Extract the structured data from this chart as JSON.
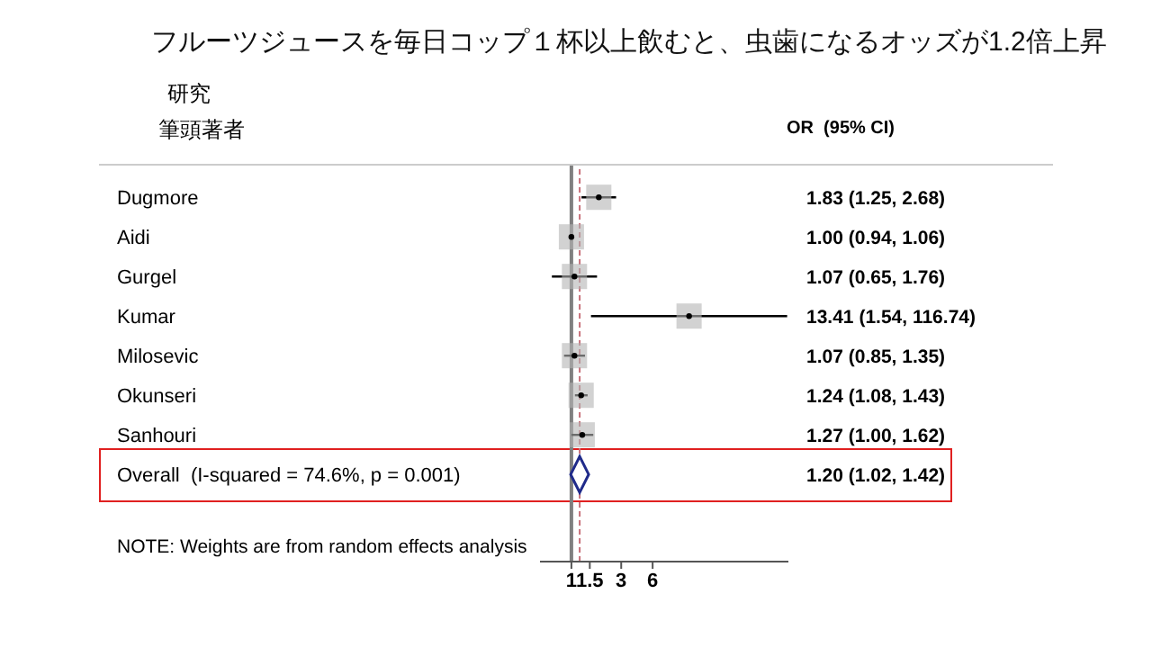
{
  "chart_data": {
    "type": "scatter",
    "orientation": "horizontal",
    "title": "フルーツジュースを毎日コップ１杯以上飲むと、虫歯になるオッズが1.2倍上昇",
    "categories": [
      "Dugmore",
      "Aidi",
      "Gurgel",
      "Kumar",
      "Milosevic",
      "Okunseri",
      "Sanhouri",
      "Overall  (I-squared = 74.6%, p = 0.001)"
    ],
    "series": [
      {
        "color": "#b4b4b4",
        "marker": "square",
        "values": [
          1.83,
          1.0,
          1.07,
          13.41,
          1.07,
          1.24,
          1.27,
          null
        ],
        "errors": [
          [
            1.25,
            2.68
          ],
          [
            0.94,
            1.06
          ],
          [
            0.65,
            1.76
          ],
          [
            1.54,
            116.74
          ],
          [
            0.85,
            1.35
          ],
          [
            1.08,
            1.43
          ],
          [
            1.0,
            1.62
          ],
          null
        ]
      },
      {
        "color": "#1f2a8a",
        "marker": "diamond",
        "values": [
          null,
          null,
          null,
          null,
          null,
          null,
          null,
          1.2
        ],
        "errors": [
          null,
          null,
          null,
          null,
          null,
          null,
          null,
          [
            1.02,
            1.42
          ]
        ]
      }
    ],
    "log": "x",
    "xlim": [
      0.5,
      120
    ],
    "xticks": [
      1,
      1.5,
      3,
      6
    ],
    "ref_lines": [
      {
        "axis": "x",
        "value": 1,
        "color": "#808080",
        "line_style": "solid"
      },
      {
        "axis": "x",
        "value": 1.2,
        "color": "#c8707a",
        "line_style": "dashed"
      }
    ],
    "annotations": [
      "研究",
      "筆頭著者",
      "OR  (95% CI)",
      "1.83 (1.25, 2.68)",
      "1.00 (0.94, 1.06)",
      "1.07 (0.65, 1.76)",
      "13.41 (1.54, 116.74)",
      "1.07 (0.85, 1.35)",
      "1.24 (1.08, 1.43)",
      "1.27 (1.00, 1.62)",
      "1.20 (1.02, 1.42)",
      "NOTE: Weights are from random effects analysis"
    ]
  }
}
